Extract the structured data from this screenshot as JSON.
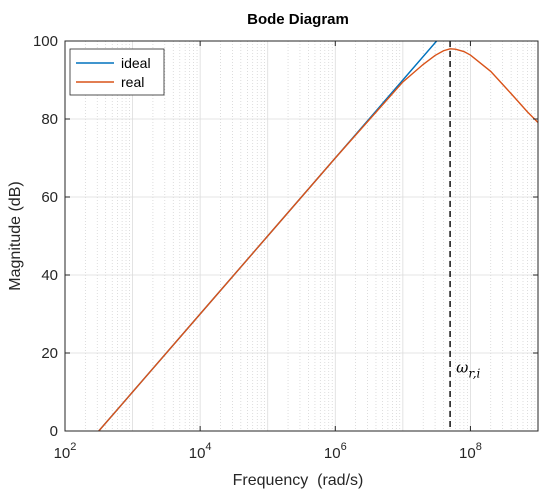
{
  "chart_data": {
    "type": "line",
    "title": "Bode Diagram",
    "xlabel": "Frequency  (rad/s)",
    "ylabel": "Magnitude (dB)",
    "xscale": "log",
    "xlim": [
      100,
      1000000000
    ],
    "ylim": [
      0,
      100
    ],
    "x_ticks": [
      100,
      10000,
      1000000,
      100000000
    ],
    "x_tick_labels": [
      {
        "base": "10",
        "exp": "2"
      },
      {
        "base": "10",
        "exp": "4"
      },
      {
        "base": "10",
        "exp": "6"
      },
      {
        "base": "10",
        "exp": "8"
      }
    ],
    "y_ticks": [
      0,
      20,
      40,
      60,
      80,
      100
    ],
    "y_tick_labels": [
      "0",
      "20",
      "40",
      "60",
      "80",
      "100"
    ],
    "grid": true,
    "minor_grid": true,
    "legend_position": "top-left",
    "series": [
      {
        "name": "ideal",
        "color": "#0072BD",
        "x": [
          316,
          1000,
          10000,
          100000,
          1000000,
          10000000,
          31600000
        ],
        "y": [
          0,
          10,
          30,
          50,
          70,
          90,
          100
        ]
      },
      {
        "name": "real",
        "color": "#D95319",
        "x": [
          316,
          1000,
          10000,
          100000,
          1000000,
          10000000,
          20000000,
          30000000,
          40000000,
          50000000,
          60000000,
          80000000,
          100000000,
          200000000,
          400000000,
          700000000,
          1000000000
        ],
        "y": [
          0,
          10,
          30,
          50,
          70,
          89.5,
          94,
          96.3,
          97.5,
          98,
          97.9,
          97.3,
          96.4,
          92.2,
          86.5,
          81.8,
          79.1
        ]
      }
    ],
    "vline": {
      "x": 50000000,
      "style": "dashed",
      "color": "#000000"
    },
    "annotation": {
      "base": "ω",
      "sub": "r,i",
      "x": 50000000,
      "y": 14
    }
  }
}
